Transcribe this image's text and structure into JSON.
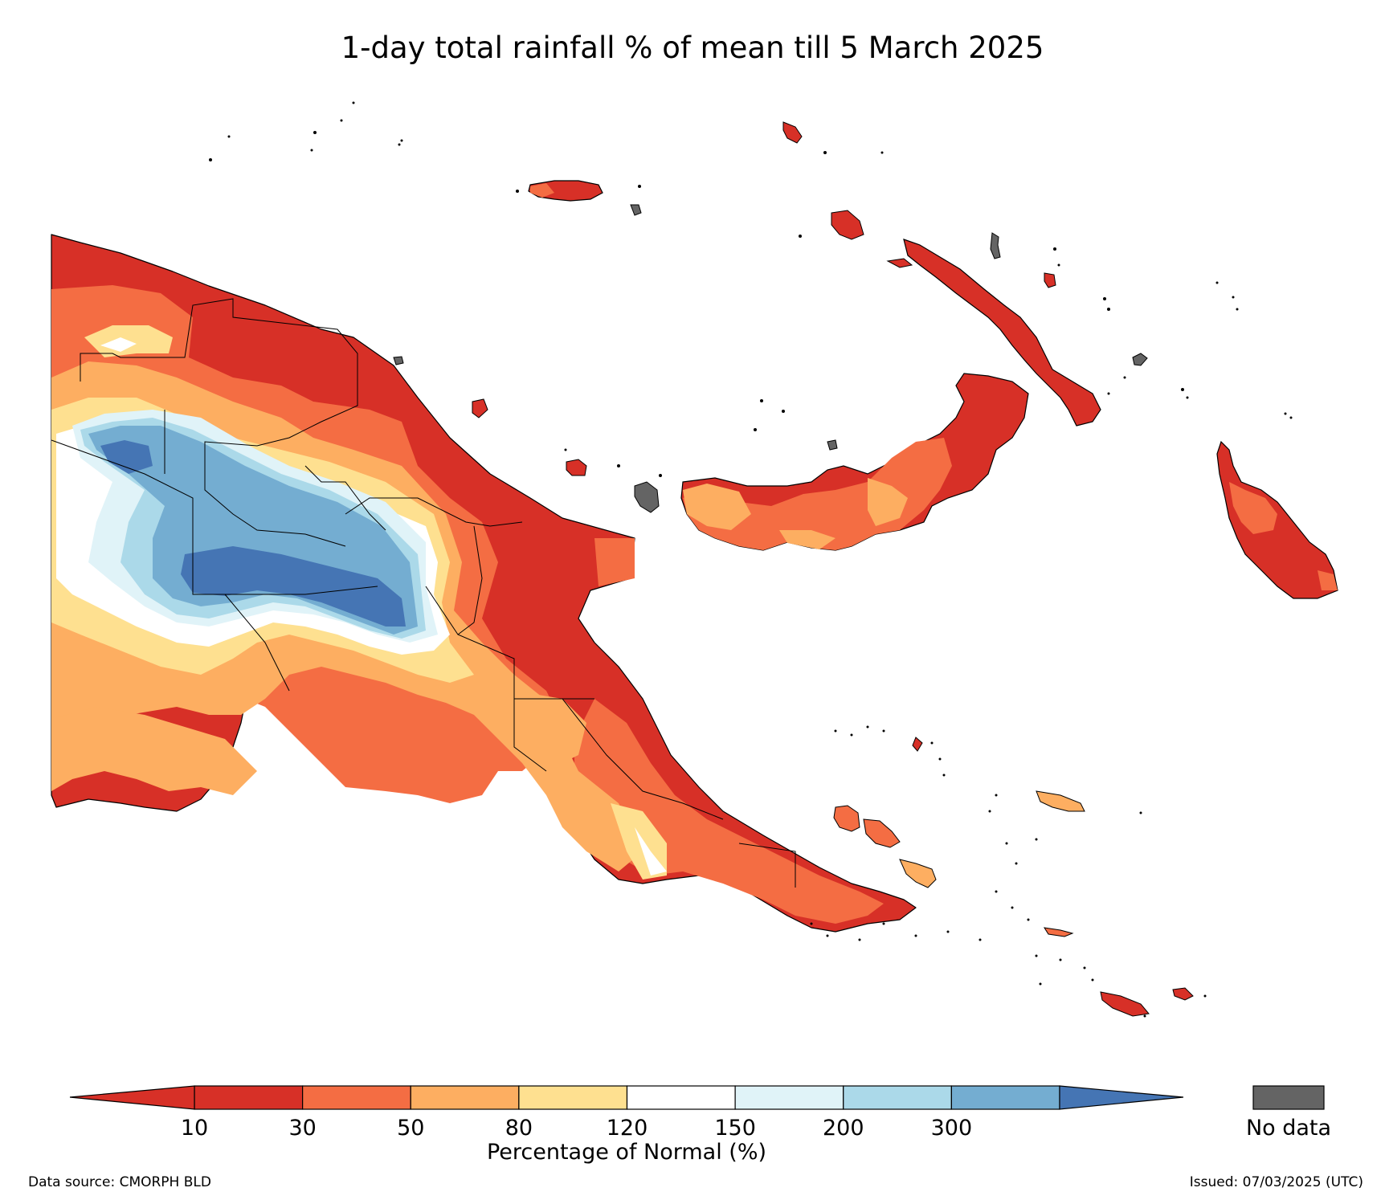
{
  "title": "1-day total rainfall % of mean till 5 March 2025",
  "legend": {
    "bins": [
      {
        "label": "10",
        "color": "#d73027"
      },
      {
        "label": "30",
        "color": "#f46d43"
      },
      {
        "label": "50",
        "color": "#fdae61"
      },
      {
        "label": "80",
        "color": "#fee090"
      },
      {
        "label": "120",
        "color": "#ffffff"
      },
      {
        "label": "150",
        "color": "#e0f3f8"
      },
      {
        "label": "200",
        "color": "#abd9e9"
      },
      {
        "label": "300",
        "color": "#74add1"
      }
    ],
    "low_color": "#d73027",
    "high_color": "#4575b4",
    "axis_label": "Percentage of Normal (%)",
    "nodata_label": "No data",
    "nodata_color": "#646464"
  },
  "footer": {
    "source": "Data source: CMORPH BLD",
    "issued": "Issued: 07/03/2025 (UTC)"
  }
}
